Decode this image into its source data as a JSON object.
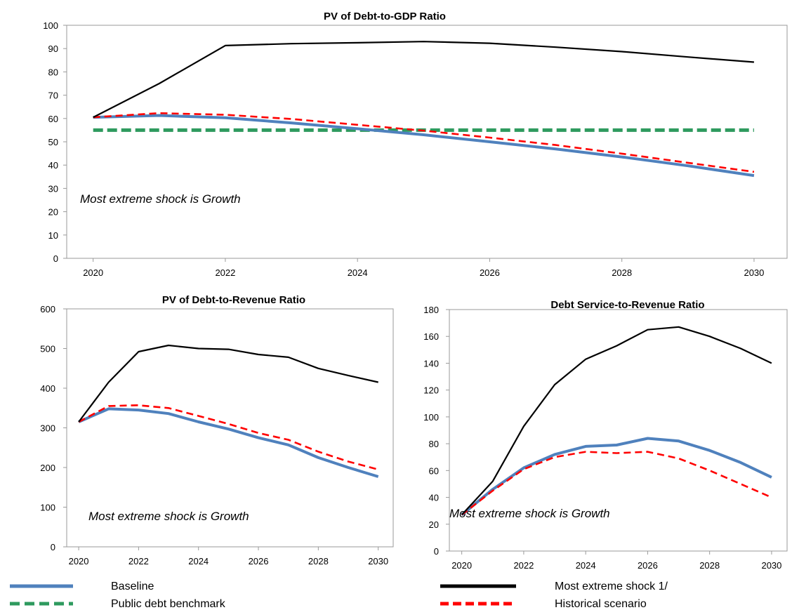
{
  "legend": [
    {
      "key": "baseline",
      "label": "Baseline"
    },
    {
      "key": "benchmark",
      "label": "Public debt benchmark"
    },
    {
      "key": "extreme",
      "label": "Most extreme shock 1/"
    },
    {
      "key": "historical",
      "label": "Historical scenario"
    }
  ],
  "colors": {
    "baseline": "#4f81bd",
    "benchmark": "#2e9a5e",
    "extreme": "#000000",
    "historical": "#ff0000"
  },
  "chart_data": [
    {
      "type": "line",
      "title": "PV of Debt-to-GDP Ratio",
      "annotation": "Most extreme shock is Growth",
      "x": [
        2020,
        2021,
        2022,
        2023,
        2024,
        2025,
        2026,
        2027,
        2028,
        2029,
        2030
      ],
      "xticks": [
        2020,
        2022,
        2024,
        2026,
        2028,
        2030
      ],
      "ylim": [
        0,
        100
      ],
      "yticks": [
        0,
        10,
        20,
        30,
        40,
        50,
        60,
        70,
        80,
        90,
        100
      ],
      "series": [
        {
          "key": "baseline",
          "name": "Baseline",
          "values": [
            60.5,
            61.3,
            60.3,
            58.1,
            55.6,
            53.0,
            50.0,
            46.9,
            43.5,
            39.7,
            35.5
          ]
        },
        {
          "key": "benchmark",
          "name": "Public debt benchmark",
          "values": [
            55,
            55,
            55,
            55,
            55,
            55,
            55,
            55,
            55,
            55,
            55
          ]
        },
        {
          "key": "extreme",
          "name": "Most extreme shock 1/",
          "values": [
            60.5,
            75.0,
            91.3,
            92.1,
            92.5,
            93.0,
            92.3,
            90.6,
            88.7,
            86.4,
            84.2
          ]
        },
        {
          "key": "historical",
          "name": "Historical scenario",
          "values": [
            60.5,
            62.3,
            61.6,
            59.8,
            57.3,
            54.8,
            51.8,
            48.6,
            44.9,
            41.0,
            37.1
          ]
        }
      ]
    },
    {
      "type": "line",
      "title": "PV of Debt-to-Revenue Ratio",
      "annotation": "Most extreme shock is Growth",
      "x": [
        2020,
        2021,
        2022,
        2023,
        2024,
        2025,
        2026,
        2027,
        2028,
        2029,
        2030
      ],
      "xticks": [
        2020,
        2022,
        2024,
        2026,
        2028,
        2030
      ],
      "ylim": [
        0,
        600
      ],
      "yticks": [
        0,
        100,
        200,
        300,
        400,
        500,
        600
      ],
      "series": [
        {
          "key": "baseline",
          "name": "Baseline",
          "values": [
            315,
            348,
            345,
            336,
            315,
            297,
            275,
            257,
            225,
            200,
            177
          ]
        },
        {
          "key": "extreme",
          "name": "Most extreme shock 1/",
          "values": [
            315,
            415,
            492,
            508,
            500,
            498,
            485,
            478,
            450,
            432,
            415
          ]
        },
        {
          "key": "historical",
          "name": "Historical scenario",
          "values": [
            315,
            355,
            357,
            350,
            330,
            310,
            287,
            270,
            240,
            215,
            195
          ]
        }
      ]
    },
    {
      "type": "line",
      "title": "Debt Service-to-Revenue Ratio",
      "annotation": "Most extreme shock is Growth",
      "x": [
        2020,
        2021,
        2022,
        2023,
        2024,
        2025,
        2026,
        2027,
        2028,
        2029,
        2030
      ],
      "xticks": [
        2020,
        2022,
        2024,
        2026,
        2028,
        2030
      ],
      "ylim": [
        0,
        180
      ],
      "yticks": [
        0,
        20,
        40,
        60,
        80,
        100,
        120,
        140,
        160,
        180
      ],
      "series": [
        {
          "key": "baseline",
          "name": "Baseline",
          "values": [
            27,
            46,
            62,
            72,
            78,
            79,
            84,
            82,
            75,
            66,
            55
          ]
        },
        {
          "key": "extreme",
          "name": "Most extreme shock 1/",
          "values": [
            27,
            52,
            93,
            124,
            143,
            153,
            165,
            167,
            160,
            151,
            140
          ]
        },
        {
          "key": "historical",
          "name": "Historical scenario",
          "values": [
            27,
            45,
            61,
            70,
            74,
            73,
            74,
            69,
            60,
            50,
            40
          ]
        }
      ]
    }
  ]
}
